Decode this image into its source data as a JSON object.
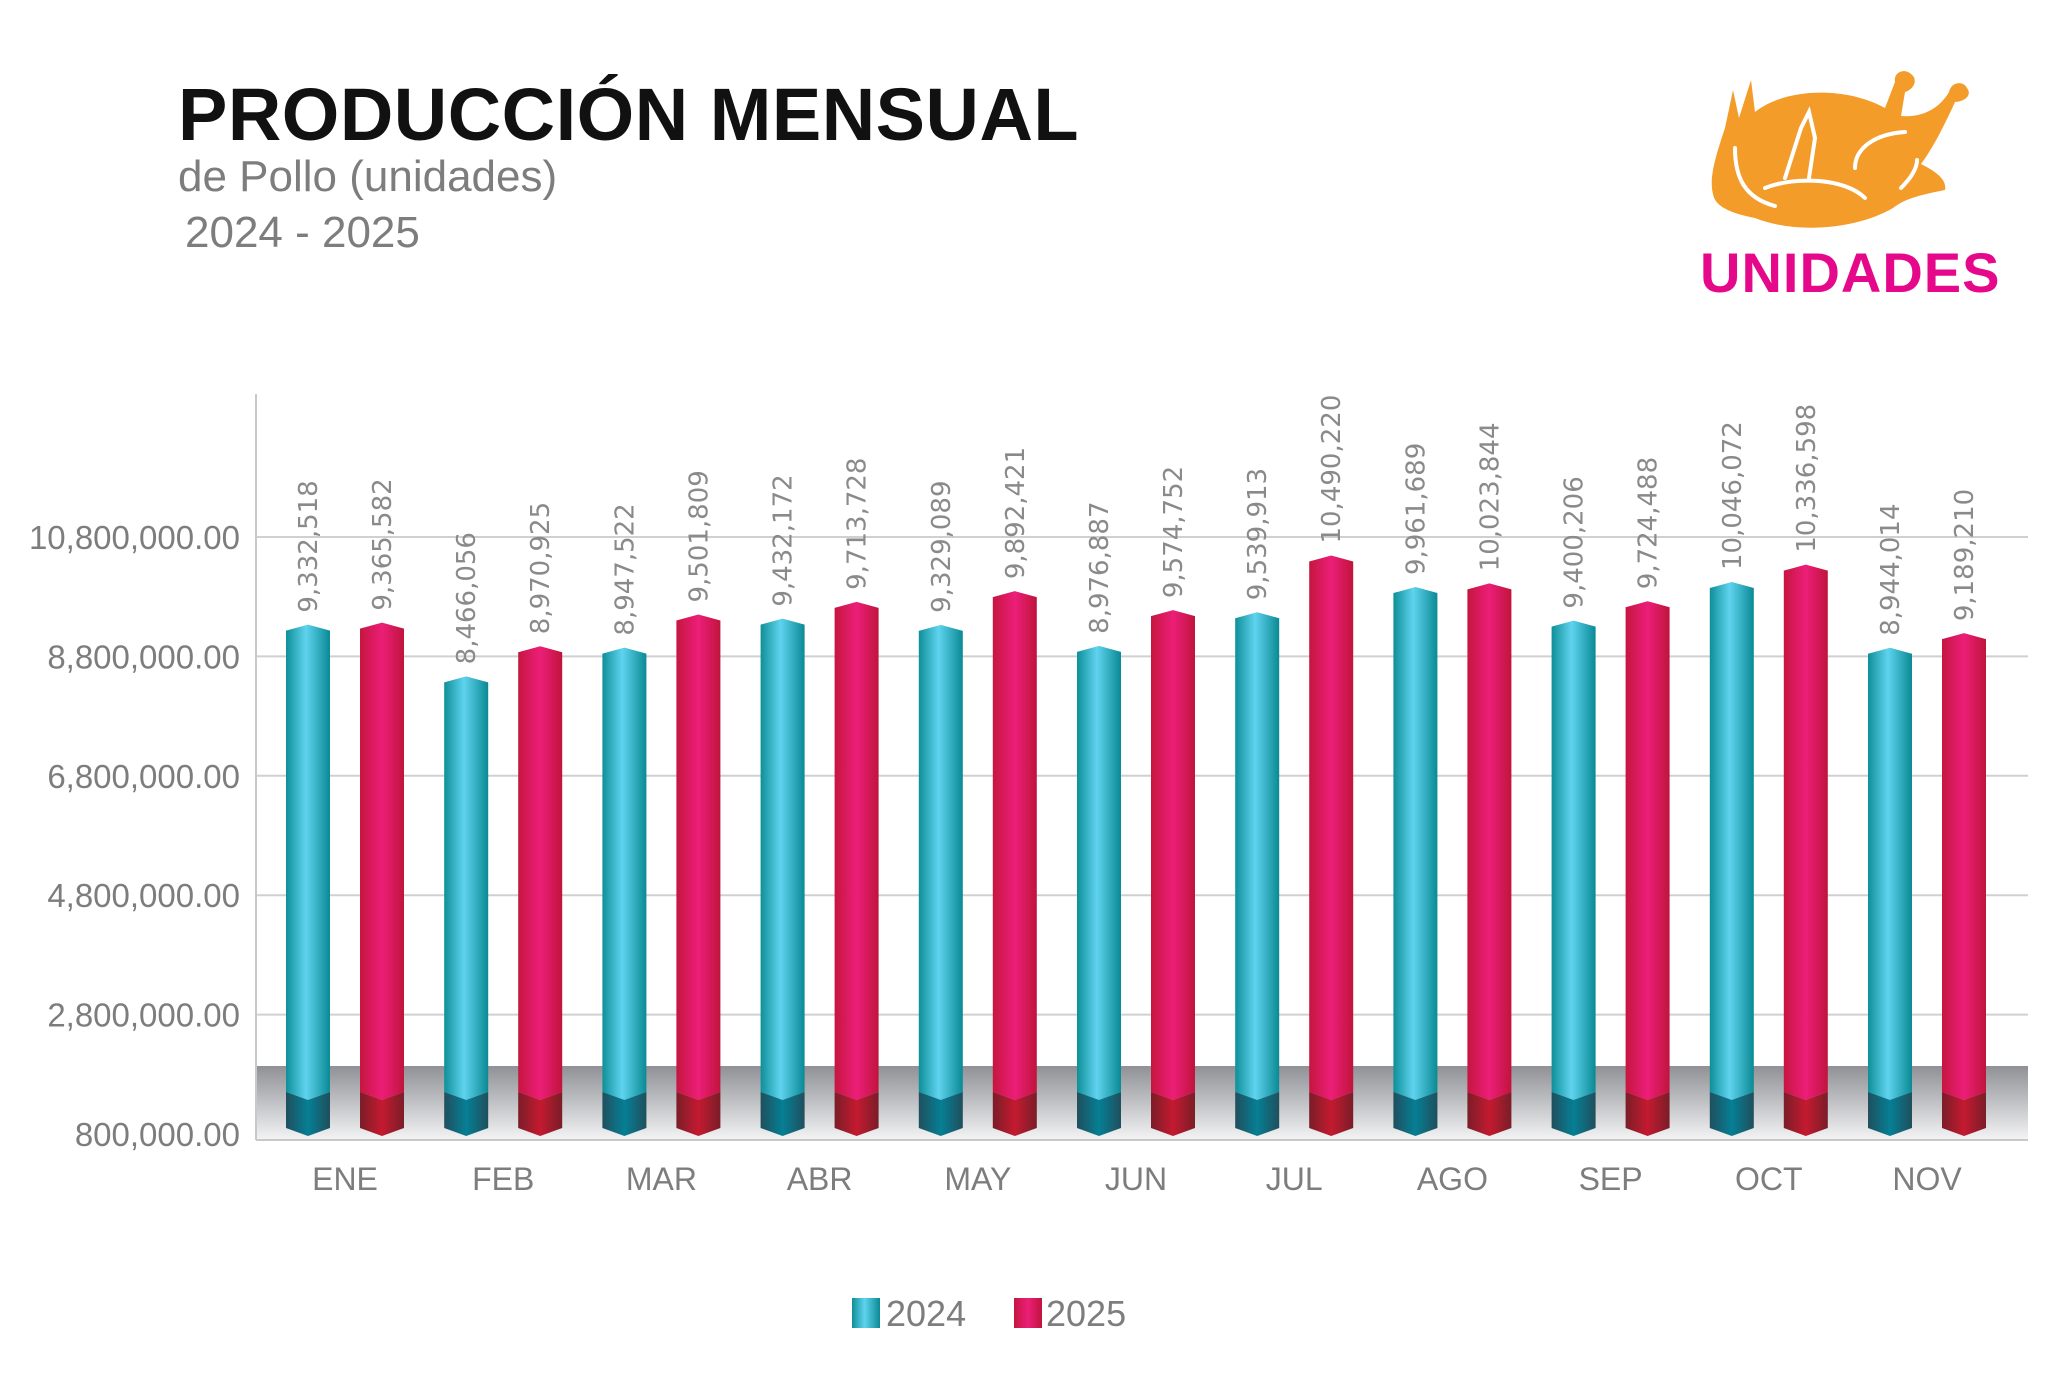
{
  "header": {
    "title": "PRODUCCIÓN MENSUAL",
    "subtitle": "de Pollo (unidades)",
    "years": "2024 - 2025"
  },
  "logo": {
    "icon": "roast-chicken-icon",
    "label": "UNIDADES",
    "icon_color": "#F39C2A",
    "label_color": "#E6088A"
  },
  "chart_data": {
    "type": "bar",
    "style": "3d-cylinder-pointed",
    "categories": [
      "ENE",
      "FEB",
      "MAR",
      "ABR",
      "MAY",
      "JUN",
      "JUL",
      "AGO",
      "SEP",
      "OCT",
      "NOV"
    ],
    "series": [
      {
        "name": "2024",
        "color": "#1aa3b4",
        "values": [
          9332518,
          8466056,
          8947522,
          9432172,
          9329089,
          8976887,
          9539913,
          9961689,
          9400206,
          10046072,
          8944014
        ],
        "labels": [
          "9,332,518",
          "8,466,056",
          "8,947,522",
          "9,432,172",
          "9,329,089",
          "8,976,887",
          "9,539,913",
          "9,961,689",
          "9,400,206",
          "10,046,072",
          "8,944,014"
        ]
      },
      {
        "name": "2025",
        "color": "#e0195f",
        "values": [
          9365582,
          8970925,
          9501809,
          9713728,
          9892421,
          9574752,
          10490220,
          10023844,
          9724488,
          10336598,
          9189210
        ],
        "labels": [
          "9,365,582",
          "8,970,925",
          "9,501,809",
          "9,713,728",
          "9,892,421",
          "9,574,752",
          "10,490,220",
          "10,023,844",
          "9,724,488",
          "10,336,598",
          "9,189,210"
        ]
      }
    ],
    "yticks": [
      800000,
      2800000,
      4800000,
      6800000,
      8800000,
      10800000
    ],
    "ytick_labels": [
      "800,000.00",
      "2,800,000.00",
      "4,800,000.00",
      "6,800,000.00",
      "8,800,000.00",
      "10,800,000.00"
    ],
    "ylim": [
      800000,
      13200000
    ],
    "grid": true,
    "legend": "bottom-center",
    "xlabel": "",
    "ylabel": "",
    "title": ""
  }
}
